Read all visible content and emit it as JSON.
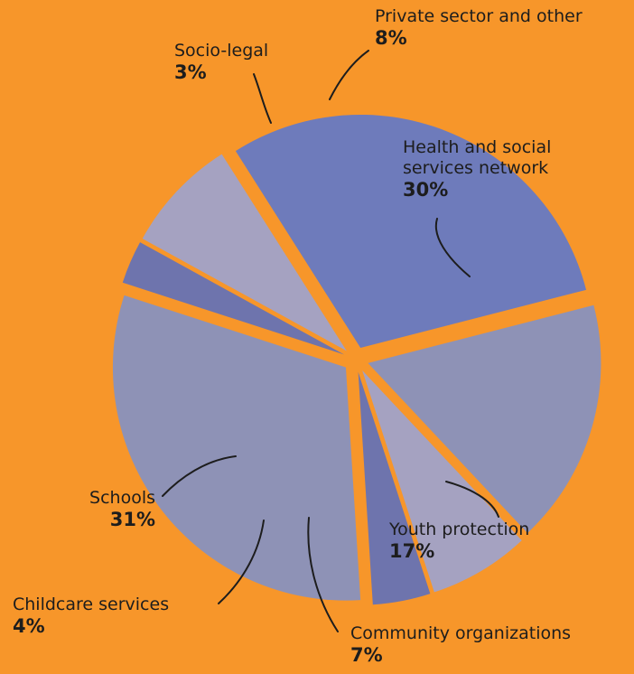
{
  "chart_data": {
    "type": "pie",
    "title": "",
    "unit": "%",
    "slices": [
      {
        "name": "Health and social services network",
        "value": 30,
        "label": "30%",
        "color": "#6E7BBB"
      },
      {
        "name": "Youth protection",
        "value": 17,
        "label": "17%",
        "color": "#8E92B6"
      },
      {
        "name": "Community organizations",
        "value": 7,
        "label": "7%",
        "color": "#A5A2C1"
      },
      {
        "name": "Childcare services",
        "value": 4,
        "label": "4%",
        "color": "#6E74AD"
      },
      {
        "name": "Schools",
        "value": 31,
        "label": "31%",
        "color": "#8E92B6"
      },
      {
        "name": "Socio-legal",
        "value": 3,
        "label": "3%",
        "color": "#6E74AD"
      },
      {
        "name": "Private sector and other",
        "value": 8,
        "label": "8%",
        "color": "#A5A2C1"
      }
    ]
  },
  "labels": {
    "health_name_1": "Health and social",
    "health_name_2": "services network",
    "health_pct": "30%",
    "youth_name": "Youth protection",
    "youth_pct": "17%",
    "community_name": "Community organizations",
    "community_pct": "7%",
    "childcare_name": "Childcare services",
    "childcare_pct": "4%",
    "schools_name": "Schools",
    "schools_pct": "31%",
    "sociolegal_name": "Socio-legal",
    "sociolegal_pct": "3%",
    "private_name": "Private sector and other",
    "private_pct": "8%"
  },
  "colors": {
    "background": "#F7962A",
    "leader_line": "#1d1d1d"
  }
}
